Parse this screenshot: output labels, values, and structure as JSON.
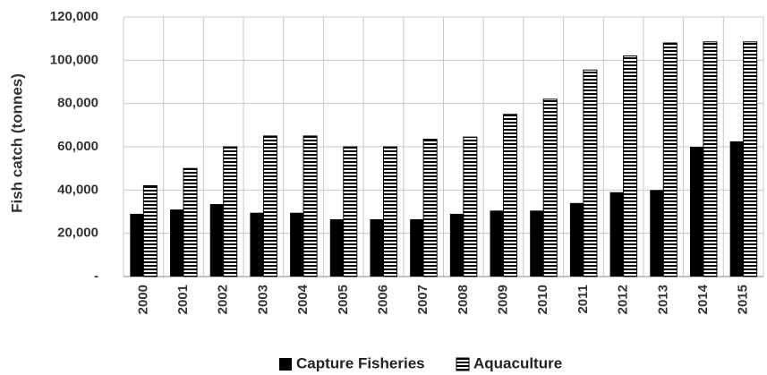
{
  "chart_data": {
    "type": "bar",
    "title": "",
    "xlabel": "",
    "ylabel": "Fish catch (tonnes)",
    "ylim": [
      0,
      120000
    ],
    "yticks": [
      0,
      20000,
      40000,
      60000,
      80000,
      100000,
      120000
    ],
    "ytick_labels": [
      "-",
      "20,000",
      "40,000",
      "60,000",
      "80,000",
      "100,000",
      "120,000"
    ],
    "grid": true,
    "legend_position": "bottom",
    "categories": [
      "2000",
      "2001",
      "2002",
      "2003",
      "2004",
      "2005",
      "2006",
      "2007",
      "2008",
      "2009",
      "2010",
      "2011",
      "2012",
      "2013",
      "2014",
      "2015"
    ],
    "series": [
      {
        "name": "Capture Fisheries",
        "pattern": "solid",
        "color": "#000000",
        "values": [
          29000,
          31000,
          33500,
          29500,
          29500,
          26500,
          26500,
          26500,
          29000,
          30500,
          30500,
          34000,
          39000,
          40000,
          60000,
          62500
        ]
      },
      {
        "name": "Aquaculture",
        "pattern": "horizontal-stripes",
        "color": "#000000",
        "values": [
          42000,
          50000,
          60000,
          65000,
          65000,
          60000,
          60000,
          63500,
          64500,
          75000,
          82000,
          95500,
          102000,
          108000,
          108500,
          108500
        ]
      }
    ]
  }
}
